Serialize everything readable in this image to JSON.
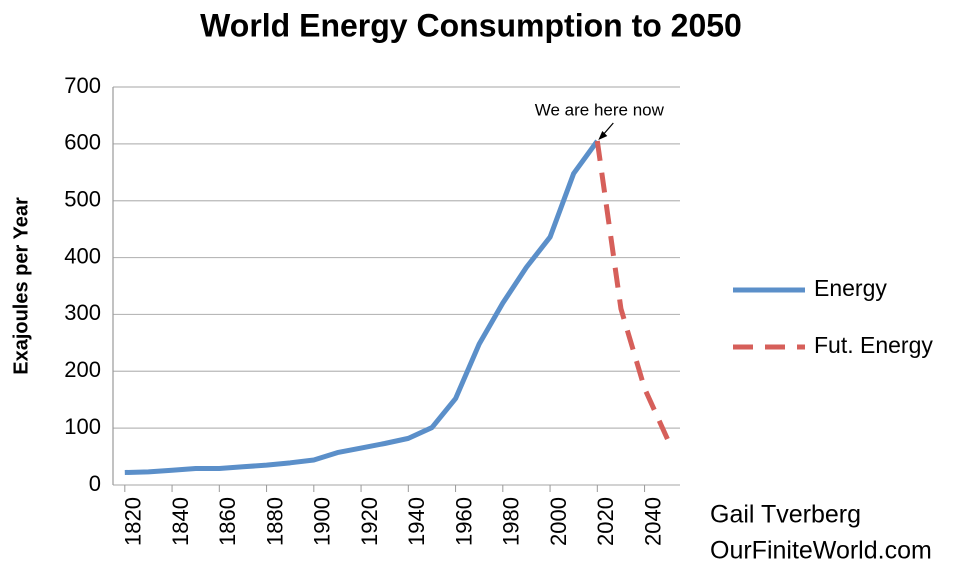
{
  "chart_data": {
    "type": "line",
    "title": "World Energy Consumption to 2050",
    "y_label": "Exajoules per Year",
    "series": [
      {
        "name": "Energy",
        "color": "#5b8fc9",
        "dash": false,
        "x": [
          1820,
          1830,
          1840,
          1850,
          1860,
          1870,
          1880,
          1890,
          1900,
          1910,
          1920,
          1930,
          1940,
          1950,
          1960,
          1970,
          1980,
          1990,
          2000,
          2010,
          2020
        ],
        "values": [
          22,
          23,
          26,
          29,
          29,
          32,
          35,
          39,
          44,
          57,
          65,
          73,
          82,
          101,
          152,
          248,
          320,
          383,
          436,
          548,
          605
        ]
      },
      {
        "name": "Fut. Energy",
        "color": "#d65f5a",
        "dash": true,
        "x": [
          2020,
          2030,
          2040,
          2050
        ],
        "values": [
          605,
          310,
          170,
          78
        ]
      }
    ],
    "xlim": [
      1815,
      2055
    ],
    "xticks": [
      1820,
      1840,
      1860,
      1880,
      1900,
      1920,
      1940,
      1960,
      1980,
      2000,
      2020,
      2040
    ],
    "ylim": [
      0,
      700
    ],
    "yticks": [
      0,
      100,
      200,
      300,
      400,
      500,
      600,
      700
    ],
    "grid": true,
    "legend": "right",
    "annotation": {
      "text": "We are here now",
      "x": 2020,
      "y": 605
    },
    "credits": [
      "Gail Tverberg",
      "OurFiniteWorld.com"
    ]
  }
}
